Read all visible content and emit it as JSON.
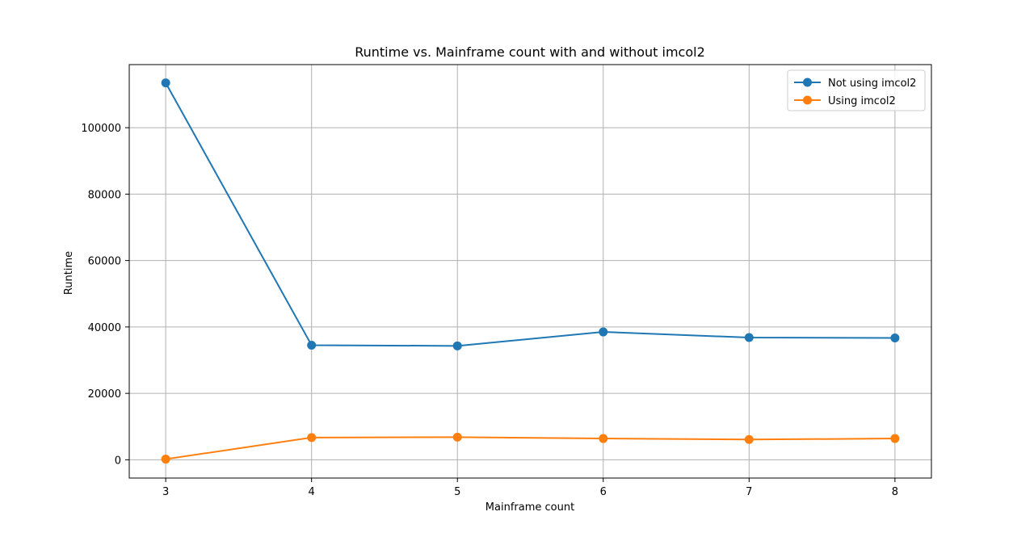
{
  "chart_data": {
    "type": "line",
    "title": "Runtime vs. Mainframe count with and without imcol2",
    "xlabel": "Mainframe count",
    "ylabel": "Runtime",
    "x": [
      3,
      4,
      5,
      6,
      7,
      8
    ],
    "x_tick_labels": [
      "3",
      "4",
      "5",
      "6",
      "7",
      "8"
    ],
    "y_ticks": [
      0,
      20000,
      40000,
      60000,
      80000,
      100000
    ],
    "y_tick_labels": [
      "0",
      "20000",
      "40000",
      "60000",
      "80000",
      "100000"
    ],
    "xlim": [
      2.75,
      8.25
    ],
    "ylim": [
      -5500,
      119000
    ],
    "grid": true,
    "legend_position": "top-right",
    "series": [
      {
        "name": "Not using imcol2",
        "color": "#1f77b4",
        "marker": "circle",
        "values": [
          113500,
          34500,
          34300,
          38500,
          36800,
          36700
        ]
      },
      {
        "name": "Using imcol2",
        "color": "#ff7f0e",
        "marker": "circle",
        "values": [
          200,
          6700,
          6800,
          6400,
          6100,
          6400
        ]
      }
    ]
  }
}
